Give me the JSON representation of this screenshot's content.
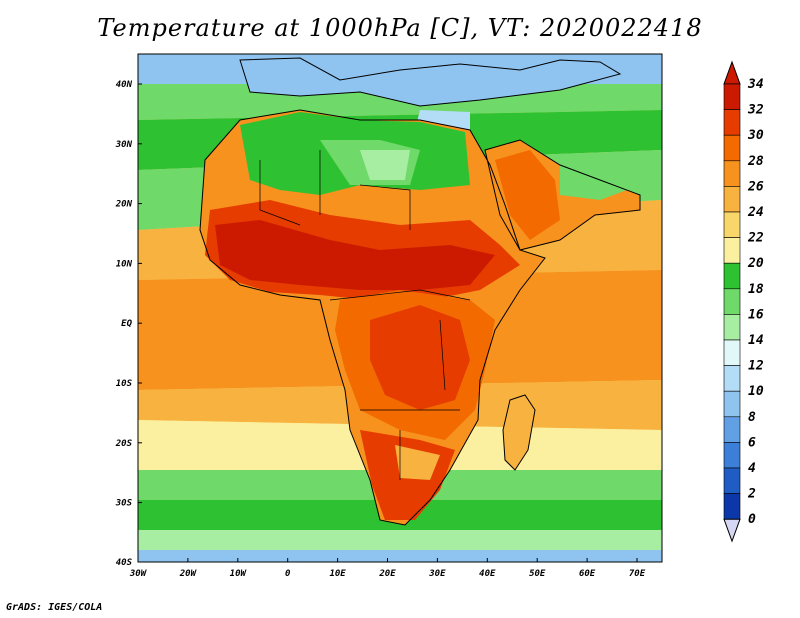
{
  "title": "Temperature at 1000hPa [C], VT: 2020022418",
  "credit": "GrADS: IGES/COLA",
  "map": {
    "region": "Africa",
    "variable": "Temperature at 1000hPa",
    "unit": "C",
    "lon_range": [
      -30,
      75
    ],
    "lat_range": [
      -40,
      45
    ],
    "lat_labels": [
      "40N",
      "30N",
      "20N",
      "10N",
      "EQ",
      "10S",
      "20S",
      "30S",
      "40S"
    ],
    "lon_labels": [
      "30W",
      "20W",
      "10W",
      "0",
      "10E",
      "20E",
      "30E",
      "40E",
      "50E",
      "60E",
      "70E"
    ]
  },
  "colorbar": {
    "labels": [
      "34",
      "32",
      "30",
      "28",
      "26",
      "24",
      "22",
      "20",
      "18",
      "16",
      "14",
      "12",
      "10",
      "8",
      "6",
      "4",
      "2",
      "0"
    ],
    "colors": [
      "#cc1a00",
      "#e63c00",
      "#f26a00",
      "#f7921e",
      "#f8b240",
      "#f9d66a",
      "#fbf0a0",
      "#2ec232",
      "#6fd96a",
      "#a8eea2",
      "#e2f8f8",
      "#b3ddf6",
      "#8fc3f0",
      "#62a0e6",
      "#3c7fd8",
      "#1f5cc4",
      "#0b37a8",
      "#0a1b7a"
    ]
  }
}
